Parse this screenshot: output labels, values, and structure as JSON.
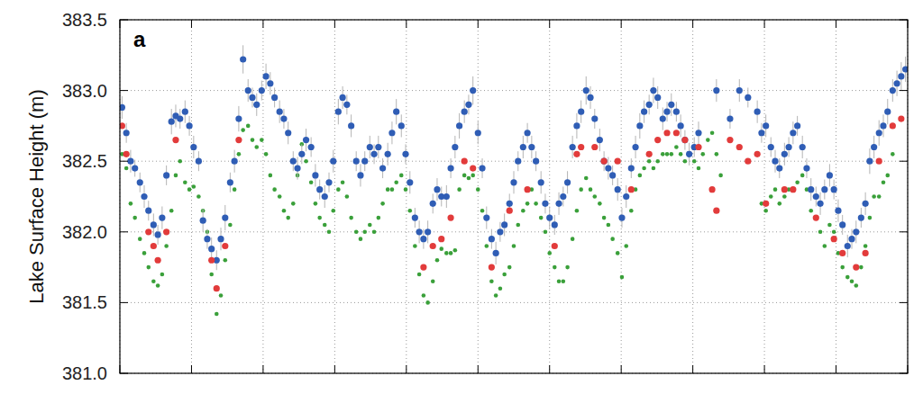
{
  "chart_data": {
    "type": "scatter",
    "title": "a",
    "y_label": "Lake Surface Height (m)",
    "xlim": [
      0,
      110
    ],
    "xticks": [
      0,
      10,
      20,
      30,
      40,
      50,
      60,
      70,
      80,
      90,
      100,
      110
    ],
    "ylim": [
      381,
      383.5
    ],
    "yticks": [
      {
        "value": 381,
        "label": "381.0"
      },
      381.5,
      {
        "value": 382,
        "label": "382.0"
      },
      382.5,
      {
        "value": 383,
        "label": "383.0"
      },
      383.5
    ],
    "grid": true,
    "tick_labels": "y",
    "series": [
      {
        "color": "#3aa03a",
        "marker": "circle",
        "x": [
          0.3,
          0.9,
          1.5,
          2.1,
          2.8,
          3.4,
          4.0,
          4.7,
          5.3,
          5.9,
          6.5,
          7.2,
          7.8,
          8.4,
          9.1,
          9.7,
          10.3,
          11.0,
          11.6,
          12.2,
          12.8,
          13.5,
          14.1,
          14.7,
          15.4,
          16.0,
          16.6,
          17.2,
          17.9,
          18.5,
          19.1,
          19.8,
          20.4,
          21.0,
          21.6,
          22.3,
          22.9,
          23.5,
          24.2,
          24.8,
          25.4,
          26.0,
          26.7,
          27.3,
          27.9,
          28.6,
          29.2,
          29.8,
          30.5,
          31.1,
          31.7,
          32.3,
          33.0,
          33.6,
          34.2,
          34.9,
          35.5,
          36.1,
          36.7,
          37.4,
          38.0,
          38.6,
          39.3,
          39.9,
          40.5,
          41.2,
          41.8,
          42.4,
          43.0,
          43.7,
          44.3,
          44.9,
          45.6,
          46.2,
          46.8,
          47.4,
          48.1,
          48.7,
          49.3,
          50.0,
          50.6,
          51.2,
          51.9,
          52.5,
          53.1,
          53.7,
          54.4,
          55.0,
          55.6,
          56.3,
          56.9,
          57.5,
          58.1,
          58.8,
          59.4,
          60.0,
          60.7,
          61.3,
          61.9,
          62.5,
          63.2,
          63.8,
          64.4,
          65.1,
          65.7,
          66.3,
          67.0,
          67.6,
          68.2,
          68.8,
          69.5,
          70.1,
          70.7,
          71.4,
          72.0,
          72.6,
          73.2,
          73.9,
          74.5,
          75.1,
          75.8,
          76.4,
          77.0,
          77.7,
          78.3,
          78.9,
          79.5,
          80.2,
          80.8,
          81.4,
          82.1,
          82.7,
          83.3,
          83.9,
          89.6,
          90.2,
          90.9,
          91.5,
          92.1,
          92.8,
          93.4,
          94.0,
          94.6,
          95.3,
          95.9,
          96.5,
          97.2,
          97.8,
          98.4,
          99.1,
          99.7,
          100.3,
          100.9,
          101.6,
          102.2,
          102.8,
          103.5,
          104.1,
          104.7,
          105.3,
          106.0,
          106.6,
          107.2,
          107.9
        ],
        "values": [
          382.55,
          382.45,
          382.2,
          382.1,
          381.95,
          381.85,
          381.75,
          381.65,
          381.62,
          381.7,
          381.9,
          382.15,
          382.4,
          382.5,
          382.35,
          382.3,
          382.32,
          382.25,
          382.15,
          382.0,
          381.7,
          381.42,
          381.55,
          381.8,
          382.05,
          382.3,
          382.55,
          382.72,
          382.75,
          382.65,
          382.6,
          382.65,
          382.55,
          382.4,
          382.3,
          382.25,
          382.15,
          382.1,
          382.2,
          382.4,
          382.62,
          382.5,
          382.35,
          382.2,
          382.1,
          382.05,
          382.0,
          382.15,
          382.3,
          382.35,
          382.25,
          382.1,
          382.0,
          381.95,
          382.0,
          382.05,
          382.0,
          382.1,
          382.2,
          382.3,
          382.3,
          382.35,
          382.4,
          382.3,
          382.15,
          381.9,
          381.7,
          381.55,
          381.5,
          381.65,
          381.8,
          381.88,
          381.85,
          381.85,
          381.87,
          382.3,
          382.4,
          382.38,
          382.4,
          382.3,
          382.15,
          381.9,
          381.65,
          381.55,
          381.6,
          381.7,
          381.75,
          381.9,
          382.05,
          382.15,
          382.2,
          382.3,
          382.2,
          382.1,
          382.0,
          381.85,
          381.75,
          381.65,
          381.65,
          381.75,
          381.95,
          382.15,
          382.3,
          382.38,
          382.3,
          382.25,
          382.2,
          382.1,
          382.05,
          381.95,
          381.85,
          381.68,
          381.9,
          382.15,
          382.3,
          382.4,
          382.45,
          382.5,
          382.45,
          382.5,
          382.55,
          382.55,
          382.55,
          382.6,
          382.55,
          382.5,
          382.55,
          382.5,
          382.45,
          382.55,
          382.65,
          382.7,
          382.55,
          382.4,
          382.2,
          382.15,
          382.25,
          382.3,
          382.2,
          382.25,
          382.3,
          382.3,
          382.35,
          382.4,
          382.3,
          382.15,
          382.1,
          382.0,
          381.9,
          382.05,
          382.0,
          381.85,
          381.75,
          381.68,
          381.65,
          381.62,
          381.75,
          381.9,
          382.1,
          382.25,
          382.25,
          382.35,
          382.4,
          382.55
        ]
      },
      {
        "color": "#2f5db5",
        "marker": "circle",
        "x": [
          0.3,
          0.9,
          1.5,
          2.1,
          2.8,
          3.4,
          4.0,
          4.7,
          5.3,
          5.9,
          6.5,
          7.2,
          7.8,
          8.4,
          9.1,
          9.7,
          10.3,
          11.0,
          11.6,
          12.2,
          12.8,
          13.5,
          14.1,
          14.7,
          15.4,
          16.0,
          16.6,
          17.2,
          17.9,
          18.5,
          19.1,
          19.8,
          20.4,
          21.0,
          21.6,
          22.3,
          22.9,
          23.5,
          24.2,
          24.8,
          25.4,
          26.0,
          26.7,
          27.3,
          27.9,
          28.6,
          29.2,
          29.8,
          30.5,
          31.1,
          31.7,
          32.3,
          33.0,
          33.6,
          34.2,
          34.9,
          35.5,
          36.1,
          36.7,
          37.4,
          38.0,
          38.6,
          39.3,
          39.9,
          40.5,
          41.2,
          41.8,
          42.4,
          43.0,
          43.7,
          44.3,
          44.9,
          45.6,
          46.2,
          46.8,
          47.4,
          48.1,
          48.7,
          49.3,
          50.0,
          50.6,
          51.2,
          51.9,
          52.5,
          53.1,
          53.7,
          54.4,
          55.0,
          55.6,
          56.3,
          56.9,
          57.5,
          58.1,
          58.8,
          59.4,
          60.0,
          60.7,
          61.3,
          61.9,
          62.5,
          63.2,
          63.8,
          64.4,
          65.1,
          65.7,
          66.3,
          67.0,
          67.6,
          68.2,
          68.8,
          69.5,
          70.1,
          70.7,
          71.4,
          72.0,
          72.6,
          73.2,
          73.9,
          74.5,
          75.1,
          75.8,
          76.4,
          77.0,
          77.7,
          78.3,
          78.9,
          79.5,
          80.2,
          80.8,
          83.3,
          85.2,
          86.5,
          87.7,
          89.0,
          89.6,
          90.2,
          90.9,
          91.5,
          92.1,
          92.8,
          93.4,
          94.0,
          94.6,
          95.3,
          95.9,
          96.5,
          97.2,
          97.8,
          98.4,
          99.1,
          99.7,
          100.3,
          100.9,
          101.6,
          102.2,
          102.8,
          103.5,
          104.1,
          104.7,
          105.3,
          106.0,
          106.6,
          107.2,
          107.9,
          108.5,
          109.1,
          109.7
        ],
        "values": [
          382.88,
          382.7,
          382.5,
          382.45,
          382.35,
          382.25,
          382.15,
          382.05,
          381.98,
          382.1,
          382.4,
          382.78,
          382.82,
          382.8,
          382.85,
          382.75,
          382.6,
          382.5,
          382.08,
          381.95,
          381.88,
          381.8,
          381.95,
          382.1,
          382.35,
          382.5,
          382.8,
          383.22,
          383.0,
          382.95,
          382.9,
          383.0,
          383.1,
          383.05,
          382.95,
          382.85,
          382.8,
          382.7,
          382.5,
          382.45,
          382.55,
          382.65,
          382.6,
          382.4,
          382.3,
          382.25,
          382.35,
          382.5,
          382.85,
          382.95,
          382.9,
          382.75,
          382.5,
          382.4,
          382.5,
          382.6,
          382.55,
          382.6,
          382.45,
          382.55,
          382.7,
          382.85,
          382.75,
          382.55,
          382.35,
          382.1,
          382.0,
          381.95,
          382.0,
          382.2,
          382.3,
          382.25,
          382.25,
          382.45,
          382.6,
          382.75,
          382.85,
          382.9,
          383.0,
          382.7,
          382.45,
          382.1,
          381.95,
          381.85,
          382.0,
          382.05,
          382.2,
          382.35,
          382.5,
          382.6,
          382.7,
          382.6,
          382.5,
          382.35,
          382.2,
          382.1,
          382.05,
          382.2,
          382.25,
          382.35,
          382.6,
          382.75,
          382.85,
          383.0,
          382.95,
          382.8,
          382.65,
          382.5,
          382.45,
          382.4,
          382.3,
          382.1,
          382.25,
          382.45,
          382.6,
          382.75,
          382.85,
          382.9,
          383.0,
          382.95,
          382.8,
          382.85,
          382.9,
          382.85,
          382.75,
          382.65,
          382.55,
          382.6,
          382.7,
          383.0,
          382.8,
          383.0,
          382.95,
          382.85,
          382.7,
          382.75,
          382.6,
          382.5,
          382.45,
          382.55,
          382.6,
          382.7,
          382.75,
          382.6,
          382.45,
          382.3,
          382.25,
          382.2,
          382.3,
          382.4,
          382.3,
          382.15,
          382.05,
          381.9,
          381.95,
          382.0,
          382.1,
          382.2,
          382.5,
          382.6,
          382.7,
          382.75,
          382.85,
          383.0,
          383.05,
          383.1,
          383.15
        ],
        "errors": [
          0.08,
          0.07,
          0.08,
          0.06,
          0.07,
          0.08,
          0.07,
          0.08,
          0.07,
          0.08,
          0.07,
          0.09,
          0.08,
          0.07,
          0.08,
          0.07,
          0.08,
          0.07,
          0.08,
          0.07,
          0.08,
          0.07,
          0.08,
          0.09,
          0.07,
          0.08,
          0.09,
          0.1,
          0.08,
          0.07,
          0.08,
          0.07,
          0.09,
          0.08,
          0.07,
          0.08,
          0.07,
          0.08,
          0.07,
          0.08,
          0.07,
          0.08,
          0.07,
          0.08,
          0.07,
          0.08,
          0.07,
          0.08,
          0.09,
          0.08,
          0.07,
          0.08,
          0.07,
          0.08,
          0.07,
          0.08,
          0.07,
          0.08,
          0.07,
          0.08,
          0.08,
          0.09,
          0.08,
          0.07,
          0.08,
          0.07,
          0.08,
          0.07,
          0.08,
          0.07,
          0.08,
          0.07,
          0.08,
          0.07,
          0.08,
          0.09,
          0.08,
          0.07,
          0.1,
          0.08,
          0.07,
          0.08,
          0.07,
          0.08,
          0.07,
          0.08,
          0.07,
          0.08,
          0.07,
          0.08,
          0.07,
          0.08,
          0.07,
          0.08,
          0.07,
          0.08,
          0.07,
          0.08,
          0.07,
          0.08,
          0.08,
          0.09,
          0.08,
          0.1,
          0.08,
          0.07,
          0.08,
          0.07,
          0.08,
          0.07,
          0.08,
          0.07,
          0.08,
          0.07,
          0.08,
          0.09,
          0.08,
          0.07,
          0.09,
          0.08,
          0.08,
          0.07,
          0.08,
          0.07,
          0.08,
          0.07,
          0.08,
          0.07,
          0.08,
          0.08,
          0.07,
          0.08,
          0.07,
          0.08,
          0.07,
          0.08,
          0.07,
          0.08,
          0.07,
          0.08,
          0.07,
          0.08,
          0.07,
          0.08,
          0.07,
          0.08,
          0.07,
          0.08,
          0.07,
          0.08,
          0.07,
          0.08,
          0.07,
          0.08,
          0.07,
          0.08,
          0.07,
          0.08,
          0.09,
          0.08,
          0.09,
          0.08,
          0.09,
          0.08,
          0.09,
          0.1,
          0.09
        ]
      },
      {
        "color": "#e23b3b",
        "marker": "circle",
        "x": [
          0.3,
          0.9,
          4.0,
          4.7,
          5.3,
          6.5,
          7.8,
          12.8,
          13.5,
          14.7,
          16.6,
          42.4,
          43.7,
          44.9,
          46.2,
          48.1,
          49.3,
          51.9,
          54.4,
          56.9,
          60.7,
          63.8,
          64.4,
          66.3,
          67.6,
          69.5,
          71.4,
          73.9,
          75.1,
          76.4,
          77.7,
          78.9,
          80.8,
          82.7,
          83.3,
          85.2,
          86.5,
          87.7,
          89.0,
          90.2,
          92.8,
          94.0,
          97.2,
          99.7,
          100.9,
          102.8,
          104.1,
          106.0,
          107.9,
          109.1
        ],
        "values": [
          382.75,
          382.55,
          382.0,
          381.9,
          381.8,
          382.0,
          382.65,
          381.8,
          381.6,
          381.9,
          382.65,
          381.75,
          381.9,
          381.95,
          382.1,
          382.5,
          382.45,
          381.75,
          382.15,
          382.3,
          381.9,
          382.55,
          382.6,
          382.6,
          382.5,
          382.5,
          382.3,
          382.55,
          382.65,
          382.7,
          382.7,
          382.65,
          382.6,
          382.3,
          382.15,
          382.65,
          382.6,
          382.5,
          382.55,
          382.2,
          382.3,
          382.3,
          382.1,
          381.95,
          381.85,
          381.75,
          381.85,
          382.5,
          382.75,
          382.8
        ]
      }
    ]
  }
}
